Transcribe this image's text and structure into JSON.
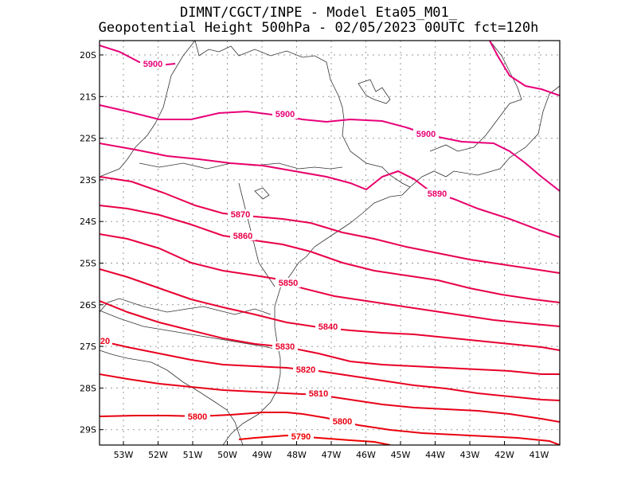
{
  "title_line1": "DIMNT/CGCT/INPE  -   Model Eta05_M01_",
  "title_line2": "Geopotential Height 500hPa  -   02/05/2023 00UTC fct=120h",
  "lat_ticks": [
    "20S",
    "21S",
    "22S",
    "23S",
    "24S",
    "25S",
    "26S",
    "27S",
    "28S",
    "29S"
  ],
  "lon_ticks": [
    "53W",
    "52W",
    "51W",
    "50W",
    "49W",
    "48W",
    "47W",
    "46W",
    "45W",
    "44W",
    "43W",
    "42W",
    "41W"
  ],
  "contour_labels": [
    {
      "text": "5900",
      "color": "#e8007a"
    },
    {
      "text": "5900",
      "color": "#e8007a"
    },
    {
      "text": "5900",
      "color": "#e8007a"
    },
    {
      "text": "5890",
      "color": "#e8006a"
    },
    {
      "text": "5870",
      "color": "#e80050"
    },
    {
      "text": "5860",
      "color": "#e80048"
    },
    {
      "text": "5850",
      "color": "#e80040"
    },
    {
      "text": "5840",
      "color": "#e80030"
    },
    {
      "text": "5830",
      "color": "#e80028"
    },
    {
      "text": "5820",
      "color": "#e80020"
    },
    {
      "text": "5810",
      "color": "#e80018"
    },
    {
      "text": "5800",
      "color": "#e80010"
    },
    {
      "text": "5800",
      "color": "#e80010"
    },
    {
      "text": "5790",
      "color": "#ee0000"
    },
    {
      "text": "20",
      "color": "#e80018"
    }
  ]
}
